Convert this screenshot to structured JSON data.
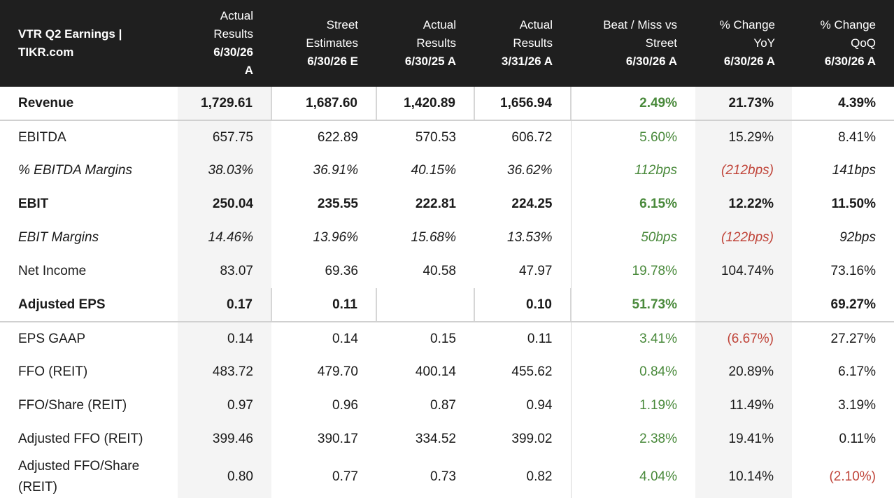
{
  "colors": {
    "header_bg": "#1f1f1f",
    "positive": "#4a8a3c",
    "negative": "#c0453a",
    "shade": "#f4f4f4"
  },
  "header": {
    "title_line1": "VTR Q2 Earnings |",
    "title_line2": "TIKR.com",
    "columns": [
      {
        "top": "Actual Results",
        "date": "6/30/26 A"
      },
      {
        "top": "Street Estimates",
        "date": "6/30/26 E"
      },
      {
        "top": "Actual Results",
        "date": "6/30/25 A"
      },
      {
        "top": "Actual Results",
        "date": "3/31/26 A"
      },
      {
        "top": "Beat / Miss vs Street",
        "date": "6/30/26 A"
      },
      {
        "top": "% Change YoY",
        "date": "6/30/26 A"
      },
      {
        "top": "% Change QoQ",
        "date": "6/30/26 A"
      }
    ]
  },
  "rows": [
    {
      "label": "Revenue",
      "style": "bold",
      "values": [
        "1,729.61",
        "1,687.60",
        "1,420.89",
        "1,656.94",
        "2.49%",
        "21.73%",
        "4.39%"
      ],
      "tones": [
        "",
        "",
        "",
        "",
        "pos",
        "",
        ""
      ]
    },
    {
      "label": "EBITDA",
      "style": "",
      "values": [
        "657.75",
        "622.89",
        "570.53",
        "606.72",
        "5.60%",
        "15.29%",
        "8.41%"
      ],
      "tones": [
        "",
        "",
        "",
        "",
        "pos",
        "",
        ""
      ]
    },
    {
      "label": "% EBITDA Margins",
      "style": "italic",
      "values": [
        "38.03%",
        "36.91%",
        "40.15%",
        "36.62%",
        "112bps",
        "(212bps)",
        "141bps"
      ],
      "tones": [
        "",
        "",
        "",
        "",
        "pos",
        "neg",
        ""
      ]
    },
    {
      "label": "EBIT",
      "style": "bold",
      "values": [
        "250.04",
        "235.55",
        "222.81",
        "224.25",
        "6.15%",
        "12.22%",
        "11.50%"
      ],
      "tones": [
        "",
        "",
        "",
        "",
        "pos",
        "",
        ""
      ]
    },
    {
      "label": "EBIT Margins",
      "style": "italic",
      "values": [
        "14.46%",
        "13.96%",
        "15.68%",
        "13.53%",
        "50bps",
        "(122bps)",
        "92bps"
      ],
      "tones": [
        "",
        "",
        "",
        "",
        "pos",
        "neg",
        ""
      ]
    },
    {
      "label": "Net Income",
      "style": "",
      "values": [
        "83.07",
        "69.36",
        "40.58",
        "47.97",
        "19.78%",
        "104.74%",
        "73.16%"
      ],
      "tones": [
        "",
        "",
        "",
        "",
        "pos",
        "",
        ""
      ]
    },
    {
      "label": "Adjusted EPS",
      "style": "bold",
      "values": [
        "0.17",
        "0.11",
        "",
        "0.10",
        "51.73%",
        "",
        "69.27%"
      ],
      "tones": [
        "",
        "",
        "",
        "",
        "pos",
        "",
        ""
      ]
    },
    {
      "label": "EPS GAAP",
      "style": "",
      "values": [
        "0.14",
        "0.14",
        "0.15",
        "0.11",
        "3.41%",
        "(6.67%)",
        "27.27%"
      ],
      "tones": [
        "",
        "",
        "",
        "",
        "pos",
        "neg",
        ""
      ]
    },
    {
      "label": "FFO (REIT)",
      "style": "",
      "values": [
        "483.72",
        "479.70",
        "400.14",
        "455.62",
        "0.84%",
        "20.89%",
        "6.17%"
      ],
      "tones": [
        "",
        "",
        "",
        "",
        "pos",
        "",
        ""
      ]
    },
    {
      "label": "FFO/Share (REIT)",
      "style": "",
      "values": [
        "0.97",
        "0.96",
        "0.87",
        "0.94",
        "1.19%",
        "11.49%",
        "3.19%"
      ],
      "tones": [
        "",
        "",
        "",
        "",
        "pos",
        "",
        ""
      ]
    },
    {
      "label": "Adjusted FFO (REIT)",
      "style": "",
      "values": [
        "399.46",
        "390.17",
        "334.52",
        "399.02",
        "2.38%",
        "19.41%",
        "0.11%"
      ],
      "tones": [
        "",
        "",
        "",
        "",
        "pos",
        "",
        ""
      ]
    },
    {
      "label": "Adjusted FFO/Share (REIT)",
      "style": "",
      "values": [
        "0.80",
        "0.77",
        "0.73",
        "0.82",
        "4.04%",
        "10.14%",
        "(2.10%)"
      ],
      "tones": [
        "",
        "",
        "",
        "",
        "pos",
        "",
        "neg"
      ]
    }
  ]
}
